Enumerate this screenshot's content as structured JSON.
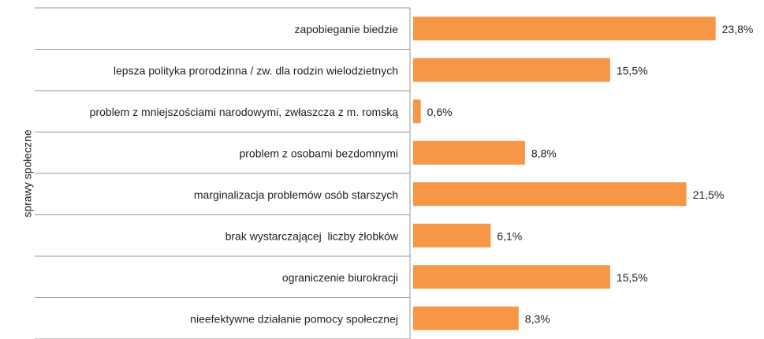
{
  "chart_data": {
    "type": "barh",
    "y_label": "sprawy społeczne",
    "categories": [
      "zapobieganie biedzie",
      "lepsza polityka prorodzinna / zw. dla rodzin wielodzietnych",
      "problem z mniejszościami narodowymi, zwłaszcza z m. romską",
      "problem z osobami bezdomnymi",
      "marginalizacja problemów osób starszych",
      "brak wystarczającej  liczby żłobków",
      "ograniczenie biurokracji",
      "nieefektywne działanie pomocy społecznej"
    ],
    "values": [
      23.8,
      15.5,
      0.6,
      8.8,
      21.5,
      6.1,
      15.5,
      8.3
    ],
    "value_labels": [
      "23,8%",
      "15,5%",
      "0,6%",
      "8,8%",
      "21,5%",
      "6,1%",
      "15,5%",
      "8,3%"
    ],
    "color": "#f79646",
    "xlim": [
      0,
      25
    ]
  }
}
